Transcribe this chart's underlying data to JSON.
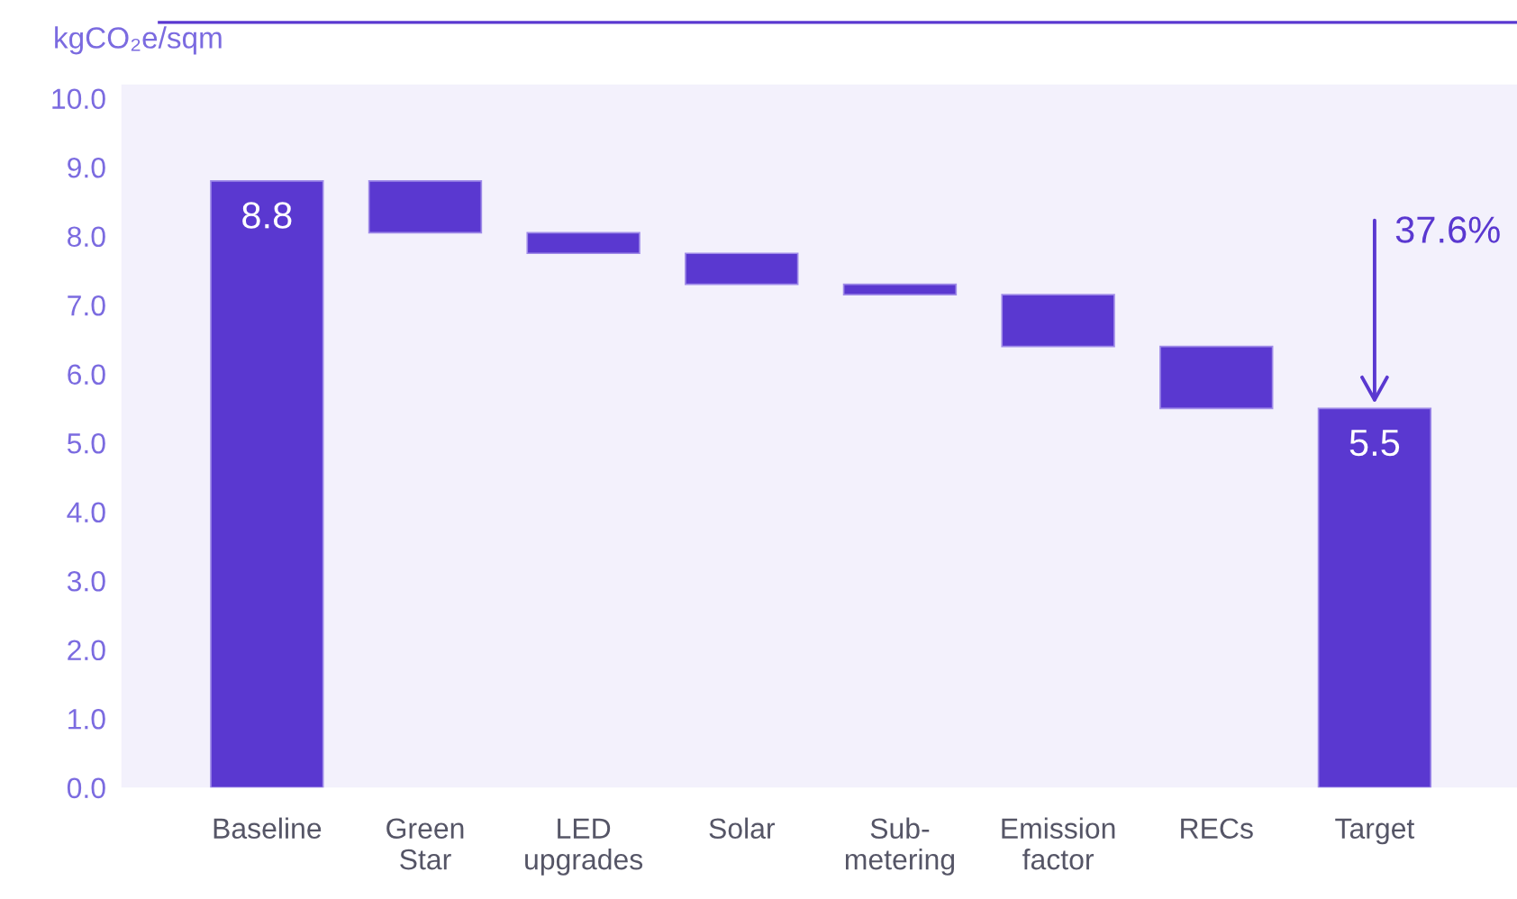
{
  "chart_data": {
    "type": "bar",
    "ylabel": "kgCO₂e/sqm",
    "categories": [
      "Baseline",
      "Green\nStar",
      "LED\nupgrades",
      "Solar",
      "Sub-\nmetering",
      "Emission\nfactor",
      "RECs",
      "Target"
    ],
    "values": [
      8.8,
      0.75,
      0.3,
      0.45,
      0.15,
      0.75,
      0.9,
      5.5
    ],
    "base": [
      0,
      8.05,
      7.75,
      7.3,
      7.15,
      6.4,
      5.5,
      0
    ],
    "color": "#5a38d0",
    "value_labels": [
      "8.8",
      null,
      null,
      null,
      null,
      null,
      null,
      "5.5"
    ],
    "ylim": [
      0,
      10.2
    ],
    "yticks": [
      {
        "value": 0,
        "label": "0.0"
      },
      {
        "value": 1,
        "label": "1.0"
      },
      {
        "value": 2,
        "label": "2.0"
      },
      {
        "value": 3,
        "label": "3.0"
      },
      {
        "value": 4,
        "label": "4.0"
      },
      {
        "value": 5,
        "label": "5.0"
      },
      {
        "value": 6,
        "label": "6.0"
      },
      {
        "value": 7,
        "label": "7.0"
      },
      {
        "value": 8,
        "label": "8.0"
      },
      {
        "value": 9,
        "label": "9.0"
      },
      {
        "value": 10,
        "label": "10.0"
      }
    ],
    "annotations": [
      {
        "text": "37.6%",
        "x": "Target",
        "y": 5.5
      }
    ],
    "grid": false,
    "legend": false
  }
}
